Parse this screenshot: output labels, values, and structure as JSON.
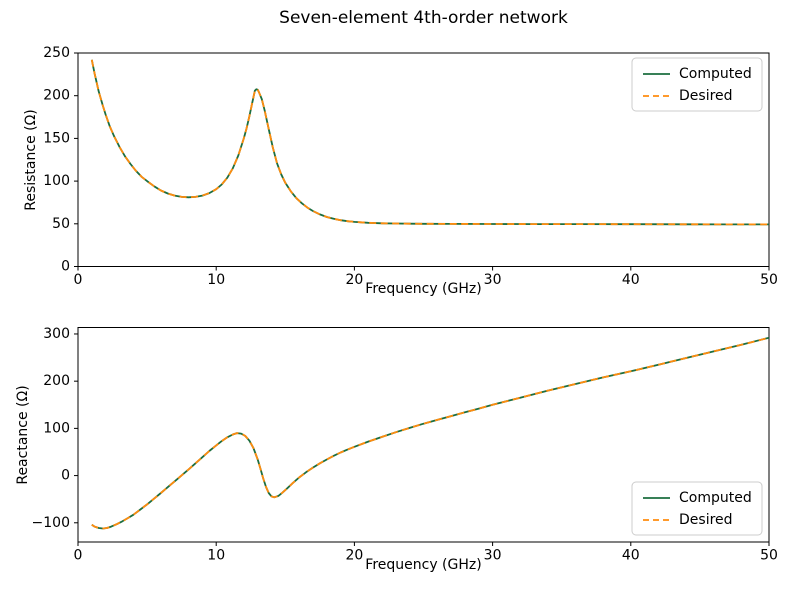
{
  "title": "Seven-element 4th-order network",
  "colors": {
    "computed": "#1c6e3f",
    "desired": "#ff8c0e",
    "axis": "#000000",
    "legend_border": "#cccccc"
  },
  "chart_data": [
    {
      "type": "line",
      "xlabel": "Frequency (GHz)",
      "ylabel": "Resistance (Ω)",
      "xlim": [
        0,
        50
      ],
      "ylim": [
        0,
        250
      ],
      "xticks": [
        0,
        10,
        20,
        30,
        40,
        50
      ],
      "yticks": [
        0,
        50,
        100,
        150,
        200,
        250
      ],
      "grid": false,
      "legend_position": "upper right",
      "x": [
        1,
        1.2,
        1.5,
        1.8,
        2,
        2.3,
        2.6,
        3,
        3.4,
        3.8,
        4.2,
        4.6,
        5,
        5.5,
        6,
        6.5,
        7,
        7.5,
        8,
        8.5,
        9,
        9.5,
        10,
        10.4,
        10.8,
        11.2,
        11.6,
        12,
        12.2,
        12.4,
        12.6,
        12.8,
        12.9,
        13,
        13.1,
        13.3,
        13.5,
        13.8,
        14.1,
        14.4,
        14.7,
        15,
        15.4,
        15.8,
        16.2,
        16.6,
        17,
        17.5,
        18,
        18.5,
        19,
        19.5,
        20,
        21,
        22,
        23,
        24,
        25,
        27,
        30,
        33,
        36,
        40,
        44,
        47,
        50
      ],
      "series": [
        {
          "name": "Computed",
          "color": "#1c6e3f",
          "dash": false,
          "values": [
            242,
            226,
            205,
            188,
            178,
            164,
            153,
            140,
            129,
            120,
            112,
            105,
            100,
            94,
            89,
            85.5,
            83,
            81.5,
            81,
            81.5,
            83,
            86,
            90.5,
            96,
            104,
            115,
            130,
            150,
            162,
            176,
            191,
            206,
            207.5,
            207,
            204,
            196,
            183,
            161,
            139,
            121,
            108,
            98,
            88,
            80,
            74,
            69,
            65,
            61,
            58,
            55.8,
            54.2,
            53,
            52.2,
            51.2,
            50.6,
            50.3,
            50.1,
            50,
            49.9,
            49.8,
            49.7,
            49.6,
            49.5,
            49.4,
            49.35,
            49.3
          ]
        },
        {
          "name": "Desired",
          "color": "#ff8c0e",
          "dash": true,
          "values": [
            242,
            226,
            205,
            188,
            178,
            164,
            153,
            140,
            129,
            120,
            112,
            105,
            100,
            94,
            89,
            85.5,
            83,
            81.5,
            81,
            81.5,
            83,
            86,
            90.5,
            96,
            104,
            115,
            130,
            150,
            162,
            176,
            191,
            206,
            207.5,
            207,
            204,
            196,
            183,
            161,
            139,
            121,
            108,
            98,
            88,
            80,
            74,
            69,
            65,
            61,
            58,
            55.8,
            54.2,
            53,
            52.2,
            51.2,
            50.6,
            50.3,
            50.1,
            50,
            49.9,
            49.8,
            49.7,
            49.6,
            49.5,
            49.4,
            49.35,
            49.3
          ]
        }
      ]
    },
    {
      "type": "line",
      "xlabel": "Frequency (GHz)",
      "ylabel": "Reactance (Ω)",
      "xlim": [
        0,
        50
      ],
      "ylim": [
        -140.7,
        313.7
      ],
      "xticks": [
        0,
        10,
        20,
        30,
        40,
        50
      ],
      "yticks": [
        -100,
        0,
        100,
        200,
        300
      ],
      "grid": false,
      "legend_position": "lower right",
      "x": [
        1,
        1.2,
        1.5,
        1.8,
        2.1,
        2.4,
        2.8,
        3.2,
        3.6,
        4,
        4.5,
        5,
        5.5,
        6,
        6.4,
        6.8,
        7.2,
        7.6,
        8,
        8.5,
        9,
        9.5,
        10,
        10.4,
        10.8,
        11.2,
        11.5,
        11.8,
        12.1,
        12.4,
        12.7,
        13,
        13.2,
        13.4,
        13.6,
        13.8,
        14,
        14.2,
        14.5,
        14.8,
        15.1,
        15.5,
        16,
        16.5,
        17,
        17.5,
        18,
        18.5,
        19,
        19.5,
        20,
        21,
        22,
        23,
        24,
        25,
        26,
        27,
        28,
        29,
        30,
        32,
        34,
        36,
        38,
        40,
        42,
        44,
        46,
        48,
        50
      ],
      "series": [
        {
          "name": "Computed",
          "color": "#1c6e3f",
          "dash": false,
          "values": [
            -104,
            -108,
            -111,
            -112,
            -111,
            -108,
            -103,
            -97,
            -90,
            -83,
            -72,
            -61,
            -49,
            -37,
            -27,
            -17,
            -7,
            3,
            13,
            26,
            39,
            52,
            64,
            73,
            81,
            87,
            90,
            89,
            84,
            74,
            58,
            34,
            15,
            -6,
            -24,
            -37,
            -44,
            -46,
            -43,
            -36,
            -28,
            -17,
            -4,
            7,
            17,
            26,
            34,
            42,
            49,
            55,
            61,
            72,
            82,
            92,
            101,
            110,
            118,
            126,
            134,
            142,
            150,
            165,
            180,
            194,
            208,
            221,
            235,
            249,
            263,
            277,
            292
          ]
        },
        {
          "name": "Desired",
          "color": "#ff8c0e",
          "dash": true,
          "values": [
            -104,
            -108,
            -111,
            -112,
            -111,
            -108,
            -103,
            -97,
            -90,
            -83,
            -72,
            -61,
            -49,
            -37,
            -27,
            -17,
            -7,
            3,
            13,
            26,
            39,
            52,
            64,
            73,
            81,
            87,
            90,
            89,
            84,
            74,
            58,
            34,
            15,
            -6,
            -24,
            -37,
            -44,
            -46,
            -43,
            -36,
            -28,
            -17,
            -4,
            7,
            17,
            26,
            34,
            42,
            49,
            55,
            61,
            72,
            82,
            92,
            101,
            110,
            118,
            126,
            134,
            142,
            150,
            165,
            180,
            194,
            208,
            221,
            235,
            249,
            263,
            277,
            292
          ]
        }
      ]
    }
  ]
}
